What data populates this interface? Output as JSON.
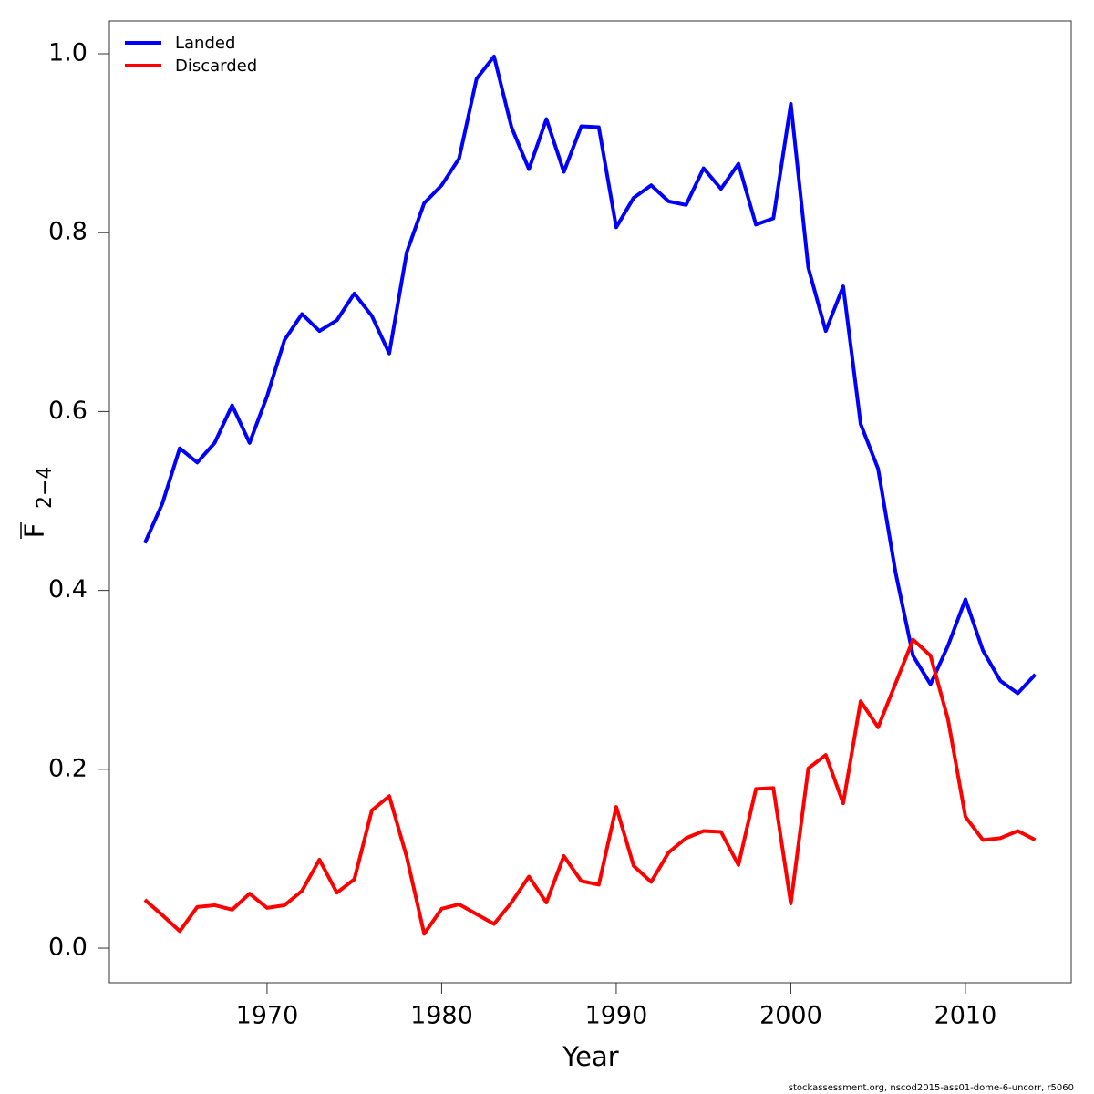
{
  "chart_data": {
    "type": "line",
    "x_label": "Year",
    "y_label": "F",
    "y_label_subscript": "2−4",
    "footnote": "stockassessment.org, nscod2015-ass01-dome-6-uncorr, r5060",
    "x": [
      1963,
      1964,
      1965,
      1966,
      1967,
      1968,
      1969,
      1970,
      1971,
      1972,
      1973,
      1974,
      1975,
      1976,
      1977,
      1978,
      1979,
      1980,
      1981,
      1982,
      1983,
      1984,
      1985,
      1986,
      1987,
      1988,
      1989,
      1990,
      1991,
      1992,
      1993,
      1994,
      1995,
      1996,
      1997,
      1998,
      1999,
      2000,
      2001,
      2002,
      2003,
      2004,
      2005,
      2006,
      2007,
      2008,
      2009,
      2010,
      2011,
      2012,
      2013,
      2014
    ],
    "series": [
      {
        "name": "Landed",
        "color": "#0000ff",
        "values": [
          0.453,
          0.497,
          0.559,
          0.543,
          0.565,
          0.607,
          0.565,
          0.617,
          0.68,
          0.709,
          0.69,
          0.702,
          0.732,
          0.707,
          0.665,
          0.778,
          0.833,
          0.853,
          0.883,
          0.972,
          0.997,
          0.918,
          0.871,
          0.927,
          0.868,
          0.919,
          0.918,
          0.806,
          0.839,
          0.853,
          0.835,
          0.831,
          0.872,
          0.849,
          0.877,
          0.809,
          0.816,
          0.944,
          0.761,
          0.69,
          0.74,
          0.586,
          0.536,
          0.42,
          0.327,
          0.295,
          0.338,
          0.39,
          0.333,
          0.299,
          0.285,
          0.306
        ]
      },
      {
        "name": "Discarded",
        "color": "#ff0000",
        "values": [
          0.054,
          0.037,
          0.019,
          0.046,
          0.048,
          0.043,
          0.061,
          0.045,
          0.048,
          0.064,
          0.099,
          0.062,
          0.077,
          0.154,
          0.17,
          0.102,
          0.016,
          0.044,
          0.049,
          0.038,
          0.027,
          0.051,
          0.08,
          0.051,
          0.103,
          0.075,
          0.071,
          0.158,
          0.092,
          0.074,
          0.107,
          0.123,
          0.131,
          0.13,
          0.093,
          0.178,
          0.179,
          0.05,
          0.201,
          0.216,
          0.162,
          0.276,
          0.247,
          0.296,
          0.345,
          0.327,
          0.256,
          0.147,
          0.121,
          0.123,
          0.131,
          0.121
        ]
      }
    ],
    "xlim": [
      1960.97,
      2016.06
    ],
    "xticks": [
      1970,
      1980,
      1990,
      2000,
      2010
    ],
    "ylim": [
      -0.0387,
      1.0367
    ],
    "yticks": [
      {
        "value": 0,
        "label": "0.0"
      },
      0.2,
      0.4,
      0.6,
      0.8,
      {
        "value": 1,
        "label": "1.0"
      }
    ],
    "grid": false,
    "legend": "top-left"
  }
}
